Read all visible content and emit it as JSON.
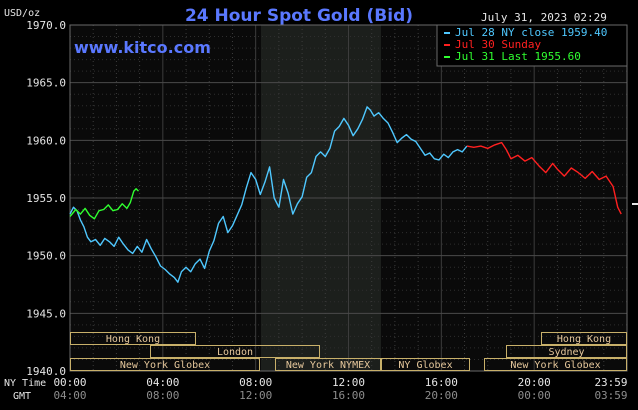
{
  "header": {
    "title": "24 Hour Spot Gold (Bid)",
    "brand": "www.kitco.com",
    "timestamp": "July 31, 2023 02:29",
    "y_unit": "USD/oz"
  },
  "legend": [
    {
      "text": "Jul 28 NY close 1959.40",
      "color": "#4fc8ff"
    },
    {
      "text": "Jul 30 Sunday",
      "color": "#ff2020"
    },
    {
      "text": "Jul 31 Last 1955.60",
      "color": "#30ff30"
    }
  ],
  "axes": {
    "ny_time_label": "NY Time",
    "gmt_label": "GMT",
    "x_ticks_ny": [
      "00:00",
      "04:00",
      "08:00",
      "12:00",
      "16:00",
      "20:00",
      "23:59"
    ],
    "x_ticks_gmt": [
      "04:00",
      "08:00",
      "12:00",
      "16:00",
      "20:00",
      "00:00",
      "03:59"
    ],
    "y_ticks": [
      "1970.0",
      "1965.0",
      "1960.0",
      "1955.0",
      "1950.0",
      "1945.0",
      "1940.0"
    ]
  },
  "sessions": {
    "left": [
      {
        "label": "Hong Kong",
        "row": 0
      },
      {
        "label": "London",
        "row": 1
      },
      {
        "label": "New York Globex",
        "row": 2
      },
      {
        "label": "New York NYMEX",
        "row": 2
      },
      {
        "label": "NY Globex",
        "row": 2
      }
    ],
    "right": [
      {
        "label": "Hong Kong",
        "row": 0
      },
      {
        "label": "Sydney",
        "row": 1
      },
      {
        "label": "New York Globex",
        "row": 2
      }
    ]
  },
  "chart_data": {
    "type": "line",
    "title": "24 Hour Spot Gold (Bid)",
    "xlabel": "NY Time",
    "ylabel": "USD/oz",
    "xlim_hours": [
      0,
      24
    ],
    "ylim": [
      1940,
      1970
    ],
    "grid": true,
    "legend_position": "top-right",
    "series": [
      {
        "name": "Jul 28 NY close 1959.40",
        "color": "#4fc8ff",
        "points": [
          [
            0.0,
            1953.6
          ],
          [
            0.15,
            1954.2
          ],
          [
            0.3,
            1953.9
          ],
          [
            0.45,
            1953.1
          ],
          [
            0.6,
            1952.5
          ],
          [
            0.75,
            1951.6
          ],
          [
            0.9,
            1951.2
          ],
          [
            1.1,
            1951.4
          ],
          [
            1.3,
            1950.9
          ],
          [
            1.5,
            1951.5
          ],
          [
            1.7,
            1951.2
          ],
          [
            1.9,
            1950.8
          ],
          [
            2.1,
            1951.6
          ],
          [
            2.3,
            1951.0
          ],
          [
            2.5,
            1950.5
          ],
          [
            2.7,
            1950.2
          ],
          [
            2.9,
            1950.8
          ],
          [
            3.1,
            1950.3
          ],
          [
            3.3,
            1951.4
          ],
          [
            3.5,
            1950.6
          ],
          [
            3.7,
            1949.9
          ],
          [
            3.9,
            1949.1
          ],
          [
            4.1,
            1948.8
          ],
          [
            4.3,
            1948.4
          ],
          [
            4.5,
            1948.1
          ],
          [
            4.65,
            1947.7
          ],
          [
            4.8,
            1948.6
          ],
          [
            5.0,
            1949.0
          ],
          [
            5.2,
            1948.6
          ],
          [
            5.4,
            1949.3
          ],
          [
            5.6,
            1949.7
          ],
          [
            5.8,
            1948.9
          ],
          [
            6.0,
            1950.4
          ],
          [
            6.2,
            1951.3
          ],
          [
            6.4,
            1952.8
          ],
          [
            6.6,
            1953.4
          ],
          [
            6.8,
            1952.0
          ],
          [
            7.0,
            1952.6
          ],
          [
            7.2,
            1953.5
          ],
          [
            7.4,
            1954.4
          ],
          [
            7.6,
            1955.9
          ],
          [
            7.8,
            1957.2
          ],
          [
            8.0,
            1956.6
          ],
          [
            8.2,
            1955.3
          ],
          [
            8.4,
            1956.4
          ],
          [
            8.6,
            1957.7
          ],
          [
            8.8,
            1955.0
          ],
          [
            9.0,
            1954.2
          ],
          [
            9.2,
            1956.6
          ],
          [
            9.4,
            1955.4
          ],
          [
            9.6,
            1953.6
          ],
          [
            9.8,
            1954.5
          ],
          [
            10.0,
            1955.1
          ],
          [
            10.2,
            1956.8
          ],
          [
            10.4,
            1957.2
          ],
          [
            10.6,
            1958.6
          ],
          [
            10.8,
            1959.0
          ],
          [
            11.0,
            1958.6
          ],
          [
            11.2,
            1959.3
          ],
          [
            11.4,
            1960.8
          ],
          [
            11.6,
            1961.2
          ],
          [
            11.8,
            1961.9
          ],
          [
            12.0,
            1961.3
          ],
          [
            12.2,
            1960.4
          ],
          [
            12.4,
            1961.0
          ],
          [
            12.6,
            1961.8
          ],
          [
            12.8,
            1962.9
          ],
          [
            12.95,
            1962.6
          ],
          [
            13.1,
            1962.1
          ],
          [
            13.3,
            1962.4
          ],
          [
            13.5,
            1961.9
          ],
          [
            13.7,
            1961.5
          ],
          [
            13.9,
            1960.7
          ],
          [
            14.1,
            1959.8
          ],
          [
            14.3,
            1960.2
          ],
          [
            14.5,
            1960.5
          ],
          [
            14.7,
            1960.1
          ],
          [
            14.9,
            1959.9
          ],
          [
            15.1,
            1959.3
          ],
          [
            15.3,
            1958.7
          ],
          [
            15.5,
            1958.9
          ],
          [
            15.7,
            1958.4
          ],
          [
            15.9,
            1958.3
          ],
          [
            16.1,
            1958.8
          ],
          [
            16.3,
            1958.5
          ],
          [
            16.5,
            1959.0
          ],
          [
            16.7,
            1959.2
          ],
          [
            16.9,
            1959.0
          ],
          [
            17.1,
            1959.5
          ]
        ]
      },
      {
        "name": "Jul 30 Sunday",
        "color": "#ff2020",
        "points": [
          [
            17.1,
            1959.5
          ],
          [
            17.4,
            1959.4
          ],
          [
            17.7,
            1959.5
          ],
          [
            18.0,
            1959.3
          ],
          [
            18.3,
            1959.6
          ],
          [
            18.6,
            1959.8
          ],
          [
            18.8,
            1959.2
          ],
          [
            19.0,
            1958.4
          ],
          [
            19.3,
            1958.7
          ],
          [
            19.6,
            1958.2
          ],
          [
            19.9,
            1958.5
          ],
          [
            20.2,
            1957.8
          ],
          [
            20.5,
            1957.2
          ],
          [
            20.8,
            1958.0
          ],
          [
            21.0,
            1957.5
          ],
          [
            21.3,
            1956.9
          ],
          [
            21.6,
            1957.6
          ],
          [
            21.9,
            1957.2
          ],
          [
            22.2,
            1956.7
          ],
          [
            22.5,
            1957.3
          ],
          [
            22.8,
            1956.6
          ],
          [
            23.1,
            1956.9
          ],
          [
            23.4,
            1956.0
          ],
          [
            23.6,
            1954.2
          ],
          [
            23.75,
            1953.6
          ]
        ]
      },
      {
        "name": "Jul 31 Last 1955.60",
        "color": "#30ff30",
        "points": [
          [
            0.0,
            1953.4
          ],
          [
            0.25,
            1954.0
          ],
          [
            0.45,
            1953.6
          ],
          [
            0.65,
            1954.1
          ],
          [
            0.85,
            1953.5
          ],
          [
            1.05,
            1953.2
          ],
          [
            1.25,
            1953.9
          ],
          [
            1.45,
            1954.0
          ],
          [
            1.65,
            1954.4
          ],
          [
            1.85,
            1953.9
          ],
          [
            2.05,
            1954.0
          ],
          [
            2.25,
            1954.5
          ],
          [
            2.45,
            1954.1
          ],
          [
            2.6,
            1954.6
          ],
          [
            2.75,
            1955.6
          ],
          [
            2.85,
            1955.8
          ],
          [
            2.95,
            1955.6
          ]
        ]
      }
    ]
  }
}
